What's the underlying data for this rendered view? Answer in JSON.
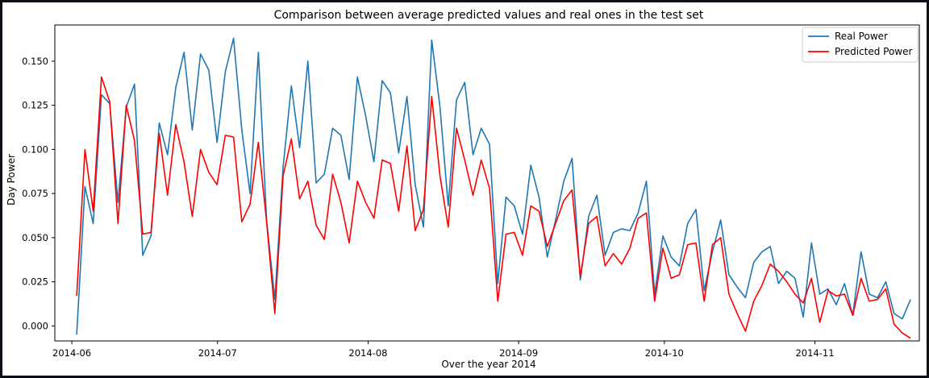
{
  "chart_data": {
    "type": "line",
    "title": "Comparison between average predicted values and real ones in the test set",
    "xlabel": "Over the year 2014",
    "ylabel": "Day Power",
    "x_ticks": [
      "2014-06",
      "2014-07",
      "2014-08",
      "2014-09",
      "2014-10",
      "2014-11"
    ],
    "y_ticks": [
      "0.000",
      "0.025",
      "0.050",
      "0.075",
      "0.100",
      "0.125",
      "0.150"
    ],
    "ylim": [
      -0.0085,
      0.1705
    ],
    "xlim_days": [
      -4.5,
      173.5
    ],
    "grid": false,
    "legend_position": "top-right",
    "series": [
      {
        "name": "Real Power",
        "color": "#1f77b4",
        "values": [
          -0.005,
          0.079,
          0.058,
          0.131,
          0.126,
          0.07,
          0.124,
          0.137,
          0.04,
          0.051,
          0.115,
          0.097,
          0.135,
          0.155,
          0.111,
          0.154,
          0.145,
          0.104,
          0.144,
          0.163,
          0.111,
          0.075,
          0.155,
          0.06,
          0.015,
          0.09,
          0.136,
          0.101,
          0.15,
          0.081,
          0.086,
          0.112,
          0.108,
          0.083,
          0.141,
          0.119,
          0.093,
          0.139,
          0.132,
          0.098,
          0.13,
          0.08,
          0.056,
          0.162,
          0.124,
          0.068,
          0.128,
          0.138,
          0.097,
          0.112,
          0.103,
          0.024,
          0.073,
          0.068,
          0.052,
          0.091,
          0.073,
          0.039,
          0.06,
          0.082,
          0.095,
          0.026,
          0.062,
          0.074,
          0.04,
          0.053,
          0.055,
          0.054,
          0.064,
          0.082,
          0.018,
          0.051,
          0.039,
          0.034,
          0.058,
          0.066,
          0.02,
          0.042,
          0.06,
          0.029,
          0.022,
          0.016,
          0.036,
          0.042,
          0.045,
          0.024,
          0.031,
          0.027,
          0.005,
          0.047,
          0.018,
          0.021,
          0.012,
          0.024,
          0.006,
          0.042,
          0.018,
          0.016,
          0.025,
          0.007,
          0.004,
          0.015
        ]
      },
      {
        "name": "Predicted Power",
        "color": "#ff0000",
        "values": [
          0.017,
          0.1,
          0.065,
          0.141,
          0.127,
          0.058,
          0.125,
          0.105,
          0.052,
          0.053,
          0.109,
          0.074,
          0.114,
          0.093,
          0.062,
          0.1,
          0.087,
          0.08,
          0.108,
          0.107,
          0.059,
          0.069,
          0.104,
          0.059,
          0.007,
          0.085,
          0.106,
          0.072,
          0.082,
          0.057,
          0.049,
          0.086,
          0.07,
          0.047,
          0.082,
          0.07,
          0.061,
          0.094,
          0.092,
          0.065,
          0.102,
          0.054,
          0.066,
          0.13,
          0.085,
          0.056,
          0.112,
          0.094,
          0.074,
          0.094,
          0.078,
          0.014,
          0.052,
          0.053,
          0.04,
          0.068,
          0.065,
          0.045,
          0.058,
          0.071,
          0.077,
          0.028,
          0.058,
          0.062,
          0.034,
          0.041,
          0.035,
          0.044,
          0.061,
          0.064,
          0.014,
          0.044,
          0.027,
          0.029,
          0.046,
          0.047,
          0.014,
          0.046,
          0.05,
          0.018,
          0.007,
          -0.003,
          0.014,
          0.023,
          0.035,
          0.031,
          0.025,
          0.018,
          0.013,
          0.027,
          0.002,
          0.02,
          0.017,
          0.018,
          0.006,
          0.027,
          0.014,
          0.015,
          0.021,
          0.001,
          -0.004,
          -0.007
        ]
      }
    ]
  }
}
